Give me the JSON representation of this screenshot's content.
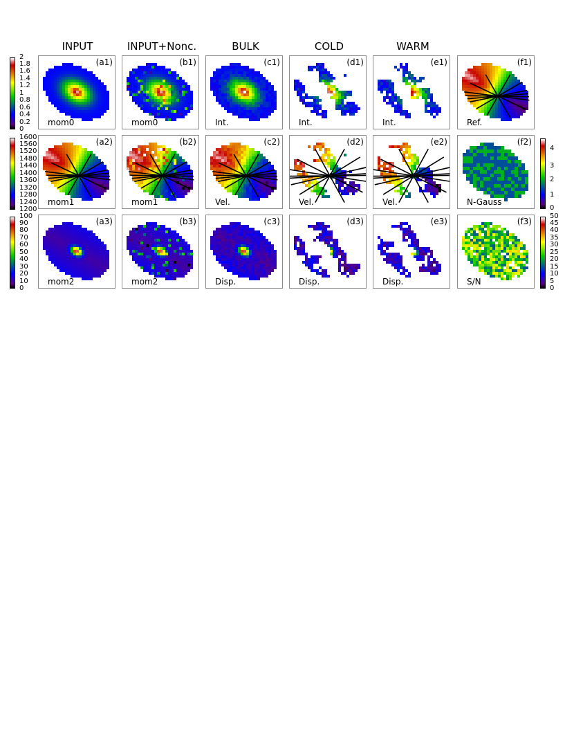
{
  "columns": [
    "INPUT",
    "INPUT+Nonc.",
    "BULK",
    "COLD",
    "WARM",
    ""
  ],
  "panels": [
    {
      "tag": "(a1)",
      "label": "mom0",
      "kind": "mom0",
      "style": "smooth"
    },
    {
      "tag": "(b1)",
      "label": "mom0",
      "kind": "mom0",
      "style": "noisy"
    },
    {
      "tag": "(c1)",
      "label": "Int.",
      "kind": "int",
      "style": "bulk"
    },
    {
      "tag": "(d1)",
      "label": "Int.",
      "kind": "int",
      "style": "sparse"
    },
    {
      "tag": "(e1)",
      "label": "Int.",
      "kind": "int",
      "style": "sparse"
    },
    {
      "tag": "(f1)",
      "label": "Ref.",
      "kind": "vel",
      "style": "smooth"
    },
    {
      "tag": "(a2)",
      "label": "mom1",
      "kind": "vel",
      "style": "smooth"
    },
    {
      "tag": "(b2)",
      "label": "mom1",
      "kind": "vel",
      "style": "noisy"
    },
    {
      "tag": "(c2)",
      "label": "Vel.",
      "kind": "vel",
      "style": "bulk"
    },
    {
      "tag": "(d2)",
      "label": "Vel.",
      "kind": "vel",
      "style": "sparse"
    },
    {
      "tag": "(e2)",
      "label": "Vel.",
      "kind": "vel",
      "style": "sparse"
    },
    {
      "tag": "(f2)",
      "label": "N-Gauss",
      "kind": "ngauss",
      "style": "blocky"
    },
    {
      "tag": "(a3)",
      "label": "mom2",
      "kind": "mom2",
      "style": "smooth"
    },
    {
      "tag": "(b3)",
      "label": "mom2",
      "kind": "mom2",
      "style": "noisy"
    },
    {
      "tag": "(c3)",
      "label": "Disp.",
      "kind": "disp",
      "style": "bulk"
    },
    {
      "tag": "(d3)",
      "label": "Disp.",
      "kind": "disp",
      "style": "sparse"
    },
    {
      "tag": "(e3)",
      "label": "Disp.",
      "kind": "disp",
      "style": "sparse"
    },
    {
      "tag": "(f3)",
      "label": "S/N",
      "kind": "sn",
      "style": "speckle"
    }
  ],
  "colorbars": [
    {
      "ticks": [
        "2",
        "1.8",
        "1.6",
        "1.4",
        "1.2",
        "1",
        "0.8",
        "0.6",
        "0.4",
        "0.2",
        "0"
      ]
    },
    {
      "ticks": [
        "1600",
        "1560",
        "1520",
        "1480",
        "1440",
        "1400",
        "1360",
        "1320",
        "1280",
        "1240",
        "1200"
      ]
    },
    {
      "ticks": [
        "100",
        "90",
        "80",
        "70",
        "60",
        "50",
        "40",
        "30",
        "20",
        "10",
        "0"
      ]
    },
    {
      "ticks": [
        "4",
        "3",
        "2",
        "1",
        "0"
      ]
    },
    {
      "ticks": [
        "50",
        "45",
        "40",
        "35",
        "30",
        "25",
        "20",
        "15",
        "10",
        "5",
        "0"
      ]
    }
  ],
  "colormap": [
    "#ffffff",
    "#c80000",
    "#ffff00",
    "#00c800",
    "#0000ff",
    "#5a0080",
    "#000000"
  ]
}
